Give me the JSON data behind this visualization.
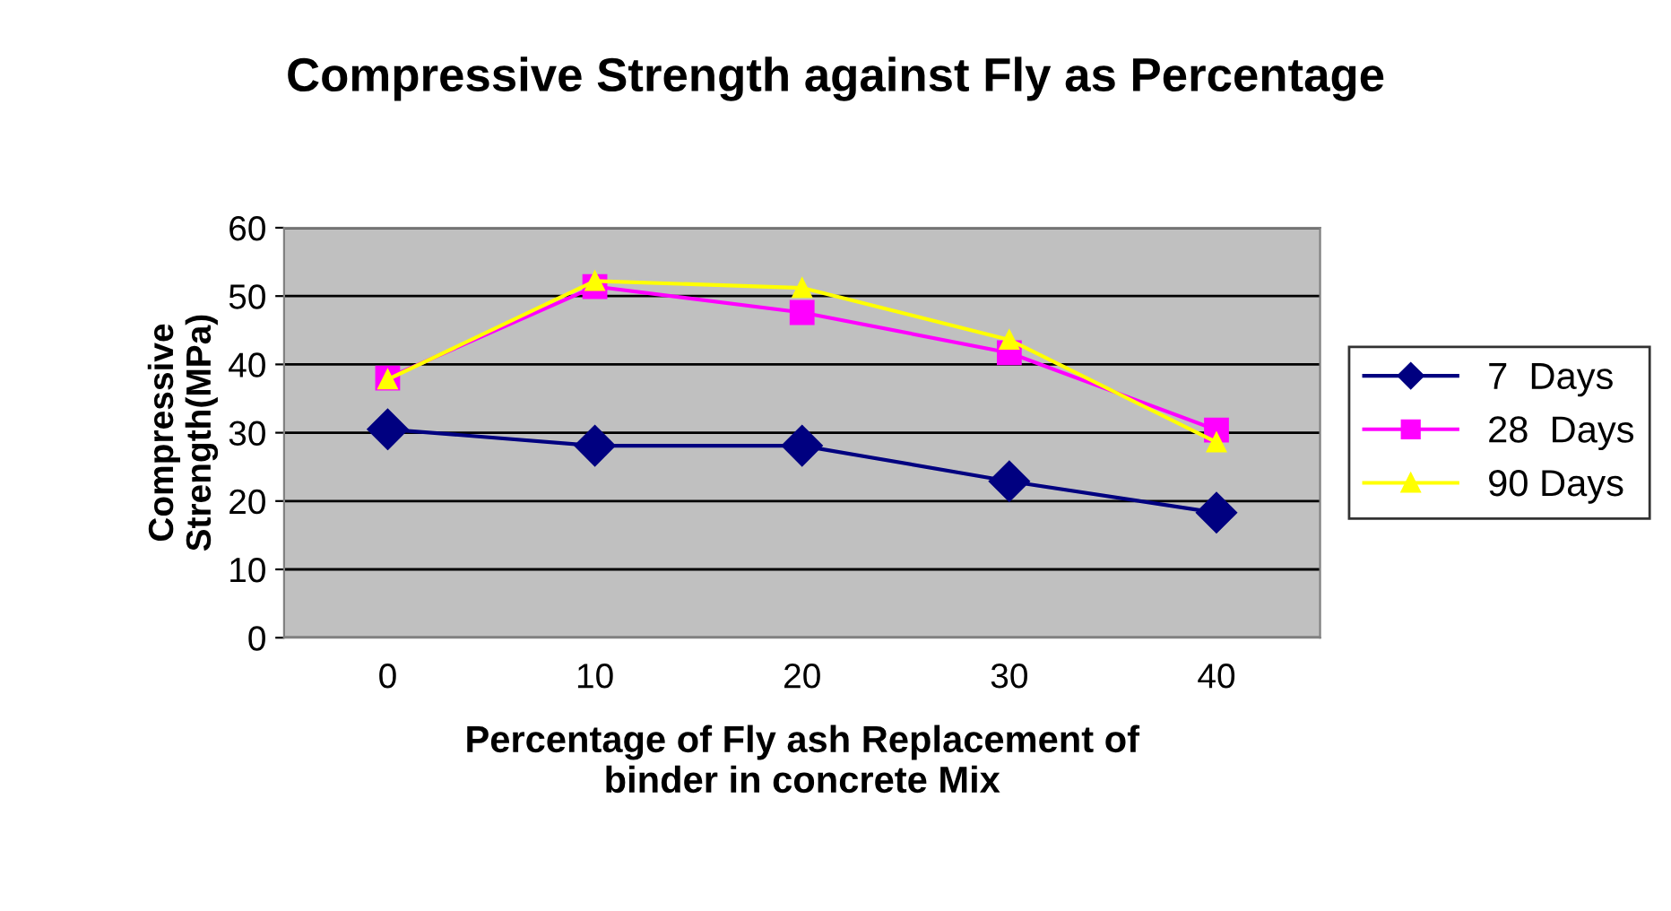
{
  "chart_data": {
    "type": "line",
    "title": "Compressive Strength against Fly as Percentage",
    "xlabel": "Percentage of Fly ash Replacement of\nbinder in concrete Mix",
    "ylabel": "Compressive\nStrength(MPa)",
    "categories": [
      "0",
      "10",
      "20",
      "30",
      "40"
    ],
    "series": [
      {
        "name": "7  Days",
        "color": "#000080",
        "marker": "diamond",
        "values": [
          30.5,
          28.1,
          28.1,
          22.9,
          18.3
        ]
      },
      {
        "name": "28  Days",
        "color": "#ff00ff",
        "marker": "square",
        "values": [
          38.0,
          51.4,
          47.6,
          41.7,
          30.4
        ]
      },
      {
        "name": "90 Days",
        "color": "#ffff00",
        "marker": "triangle",
        "values": [
          37.8,
          52.2,
          51.2,
          43.6,
          28.6
        ]
      }
    ],
    "ylim": [
      0,
      60
    ],
    "yticks": [
      0,
      10,
      20,
      30,
      40,
      50,
      60
    ],
    "grid": "y",
    "legend": "right"
  }
}
